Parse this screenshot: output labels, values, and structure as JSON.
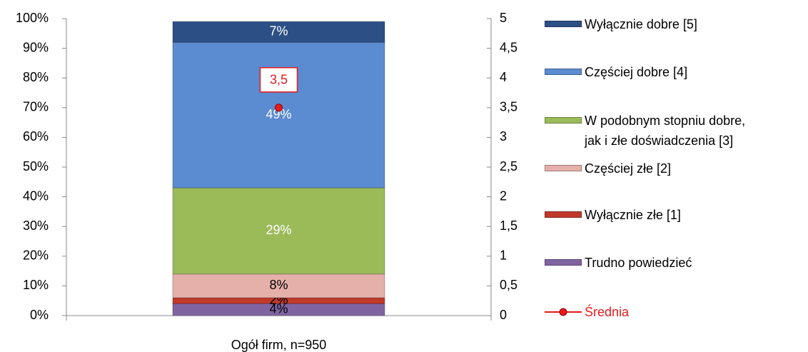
{
  "chart_data": {
    "type": "bar",
    "stacked": true,
    "categories": [
      "Ogół firm, n=950"
    ],
    "series": [
      {
        "name": "Trudno powiedzieć",
        "color": "#8064a2",
        "label_color": "#000000",
        "values": [
          4
        ],
        "value_labels": [
          "4%"
        ]
      },
      {
        "name": "Wyłącznie złe [1]",
        "color": "#c0392b",
        "label_color": "#000000",
        "values": [
          2
        ],
        "value_labels": [
          "2%"
        ]
      },
      {
        "name": "Częściej złe [2]",
        "color": "#e6b0aa",
        "label_color": "#000000",
        "values": [
          8
        ],
        "value_labels": [
          "8%"
        ]
      },
      {
        "name": "W podobnym stopniu dobre,\njak i złe doświadczenia [3]",
        "color": "#9bbb59",
        "label_color": "#ffffff",
        "values": [
          29
        ],
        "value_labels": [
          "29%"
        ]
      },
      {
        "name": "Częściej dobre [4]",
        "color": "#5b8bd0",
        "label_color": "#ffffff",
        "values": [
          49
        ],
        "value_labels": [
          "49%"
        ]
      },
      {
        "name": "Wyłącznie dobre [5]",
        "color": "#2c4f86",
        "label_color": "#ffffff",
        "values": [
          7
        ],
        "value_labels": [
          "7%"
        ]
      },
      {
        "name": "Średnia",
        "type": "line",
        "axis": "y2",
        "color": "#e31b1b",
        "values": [
          3.5
        ],
        "value_labels": [
          "3,5"
        ]
      }
    ],
    "ylim": [
      0,
      100
    ],
    "yticks": [
      {
        "value": 0,
        "label": "0%"
      },
      {
        "value": 10,
        "label": "10%"
      },
      {
        "value": 20,
        "label": "20%"
      },
      {
        "value": 30,
        "label": "30%"
      },
      {
        "value": 40,
        "label": "40%"
      },
      {
        "value": 50,
        "label": "50%"
      },
      {
        "value": 60,
        "label": "60%"
      },
      {
        "value": 70,
        "label": "70%"
      },
      {
        "value": 80,
        "label": "80%"
      },
      {
        "value": 90,
        "label": "90%"
      },
      {
        "value": 100,
        "label": "100%"
      }
    ],
    "y2lim": [
      0,
      5
    ],
    "y2ticks": [
      0,
      {
        "value": 0.5,
        "label": "0,5"
      },
      1,
      {
        "value": 1.5,
        "label": "1,5"
      },
      2,
      {
        "value": 2.5,
        "label": "2,5"
      },
      3,
      {
        "value": 3.5,
        "label": "3,5"
      },
      4,
      {
        "value": 4.5,
        "label": "4,5"
      },
      5
    ],
    "legend": "right",
    "grid": false
  }
}
